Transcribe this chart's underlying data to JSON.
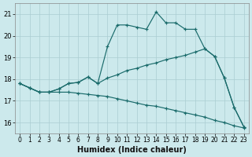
{
  "xlabel": "Humidex (Indice chaleur)",
  "bg_color": "#cce9ec",
  "grid_color": "#aacdd2",
  "line_color": "#1a6b6b",
  "xlim": [
    -0.5,
    23.5
  ],
  "ylim": [
    15.5,
    21.5
  ],
  "yticks": [
    16,
    17,
    18,
    19,
    20,
    21
  ],
  "xticks": [
    0,
    1,
    2,
    3,
    4,
    5,
    6,
    7,
    8,
    9,
    10,
    11,
    12,
    13,
    14,
    15,
    16,
    17,
    18,
    19,
    20,
    21,
    22,
    23
  ],
  "series1": [
    17.8,
    17.6,
    17.4,
    17.4,
    17.55,
    17.8,
    17.85,
    18.1,
    17.8,
    19.5,
    20.5,
    20.5,
    20.4,
    20.3,
    21.1,
    20.6,
    20.6,
    20.3,
    20.3,
    19.4,
    19.05,
    18.05,
    16.7,
    15.8
  ],
  "series2": [
    17.8,
    17.6,
    17.4,
    17.4,
    17.55,
    17.8,
    17.85,
    18.1,
    17.8,
    18.05,
    18.2,
    18.4,
    18.5,
    18.65,
    18.75,
    18.9,
    19.0,
    19.1,
    19.25,
    19.4,
    19.05,
    18.05,
    16.7,
    15.8
  ],
  "series3": [
    17.8,
    17.6,
    17.4,
    17.4,
    17.4,
    17.4,
    17.35,
    17.3,
    17.25,
    17.2,
    17.1,
    17.0,
    16.9,
    16.8,
    16.75,
    16.65,
    16.55,
    16.45,
    16.35,
    16.25,
    16.1,
    16.0,
    15.85,
    15.75
  ]
}
